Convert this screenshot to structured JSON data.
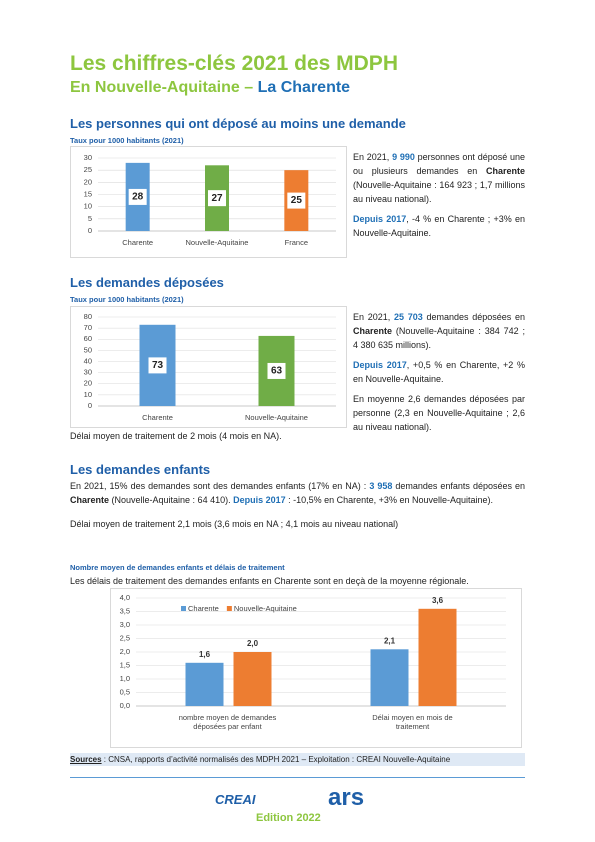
{
  "header": {
    "title": "Les chiffres-clés 2021 des MDPH",
    "subtitle_region": "En Nouvelle-Aquitaine –",
    "subtitle_dept": "La Charente"
  },
  "section1": {
    "heading": "Les personnes qui ont déposé au moins une demande",
    "paragraphs": [
      [
        "En 2021, ",
        "9 990",
        " personnes ont déposé une ou plusieurs demandes en ",
        "Charente",
        " (Nouvelle-Aquitaine : 164 923 ; 1,7 millions au niveau national)."
      ],
      [
        "Depuis 2017",
        ", -4 % en Charente ; +3% en Nouvelle-Aquitaine."
      ]
    ]
  },
  "section2": {
    "heading": "Les demandes déposées",
    "paragraphs": [
      [
        "En 2021, ",
        "25 703",
        " demandes déposées en ",
        "Charente",
        " (Nouvelle-Aquitaine : 384 742 ; 4 380 635 millions)."
      ],
      [
        "Depuis 2017",
        ", +0,5 % en Charente, +2 % en Nouvelle-Aquitaine."
      ],
      [
        "En moyenne 2,6 demandes déposées par personne (2,3 en Nouvelle-Aquitaine ; 2,6 au niveau national)."
      ]
    ],
    "note": "Délai moyen de traitement de 2 mois (4 mois en NA)."
  },
  "section3": {
    "heading": "Les demandes enfants",
    "paragraphs": [
      [
        "En 2021, 15% des demandes sont des demandes enfants (17% en NA) : ",
        "3 958",
        " demandes enfants déposées en ",
        "Charente",
        " (Nouvelle-Aquitaine : 64 410). ",
        "Depuis 2017",
        " : -10,5% en Charente, +3% en Nouvelle-Aquitaine)."
      ],
      [
        "Délai moyen de traitement 2,1 mois (3,6 mois en NA ; 4,1 mois au niveau national)"
      ]
    ]
  },
  "sources": {
    "label": "Sources",
    "text": " : CNSA, rapports d’activité normalisés des MDPH 2021 – Exploitation : CREAI Nouvelle-Aquitaine"
  },
  "footer": {
    "logo_left": "CREAI",
    "logo_right": "ars",
    "edition": "Edition 2022"
  },
  "chart_data": [
    {
      "type": "bar",
      "subtitle": "Taux pour 1000 habitants (2021)",
      "categories": [
        "Charente",
        "Nouvelle-Aquitaine",
        "France"
      ],
      "values": [
        28,
        27,
        25
      ],
      "colors": [
        "#5b9bd5",
        "#70ad47",
        "#ed7d31"
      ],
      "ylim": [
        0,
        30
      ],
      "yticks": [
        0,
        5,
        10,
        15,
        20,
        25,
        30
      ],
      "grid": true
    },
    {
      "type": "bar",
      "subtitle": "Taux pour 1000 habitants (2021)",
      "categories": [
        "Charente",
        "Nouvelle-Aquitaine"
      ],
      "values": [
        73,
        63
      ],
      "colors": [
        "#5b9bd5",
        "#70ad47"
      ],
      "ylim": [
        0,
        80
      ],
      "yticks": [
        0,
        10,
        20,
        30,
        40,
        50,
        60,
        70,
        80
      ],
      "grid": true
    },
    {
      "type": "bar",
      "title": "Nombre moyen de demandes enfants et délais de traitement",
      "subtitle": "Les délais de traitement des demandes enfants en Charente sont en deçà de la moyenne régionale.",
      "categories": [
        "nombre moyen de demandes déposées par enfant",
        "Délai moyen en mois de traitement"
      ],
      "series": [
        {
          "name": "Charente",
          "color": "#5b9bd5",
          "values": [
            1.6,
            2.1
          ],
          "value_labels": [
            "1,6",
            "2,1"
          ]
        },
        {
          "name": "Nouvelle-Aquitaine",
          "color": "#ed7d31",
          "values": [
            2.0,
            3.6
          ],
          "value_labels": [
            "2,0",
            "3,6"
          ]
        }
      ],
      "ylim": [
        0,
        4
      ],
      "yticks": [
        {
          "value": 0,
          "label": "0,0"
        },
        {
          "value": 0.5,
          "label": "0,5"
        },
        {
          "value": 1,
          "label": "1,0"
        },
        {
          "value": 1.5,
          "label": "1,5"
        },
        {
          "value": 2,
          "label": "2,0"
        },
        {
          "value": 2.5,
          "label": "2,5"
        },
        {
          "value": 3,
          "label": "3,0"
        },
        {
          "value": 3.5,
          "label": "3,5"
        },
        {
          "value": 4,
          "label": "4,0"
        }
      ],
      "grid": true
    }
  ]
}
